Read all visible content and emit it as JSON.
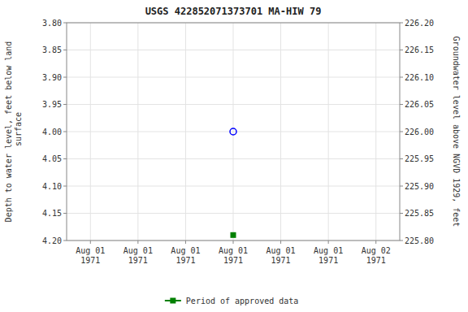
{
  "chart_data": {
    "type": "scatter",
    "title": "USGS 422852071373701 MA-HIW   79",
    "y_label": "Depth to water level, feet below land\n surface",
    "y2_label": "Groundwater level above NGVD 1929, feet",
    "categories": [
      "Aug 01\n1971",
      "Aug 01\n1971",
      "Aug 01\n1971",
      "Aug 01\n1971",
      "Aug 01\n1971",
      "Aug 01\n1971",
      "Aug 02\n1971"
    ],
    "series": [
      {
        "color": "blue",
        "marker": "circle",
        "values": [
          null,
          null,
          null,
          4.0,
          null,
          null,
          null
        ]
      },
      {
        "name": "Period of approved data",
        "color": "green",
        "marker": "square",
        "values": [
          null,
          null,
          null,
          4.19,
          null,
          null,
          null
        ]
      }
    ],
    "ylim": [
      4.2,
      3.8
    ],
    "yticks": [
      {
        "value": 3.8,
        "label": "3.80"
      },
      {
        "value": 3.85,
        "label": "3.85"
      },
      {
        "value": 3.9,
        "label": "3.90"
      },
      {
        "value": 3.95,
        "label": "3.95"
      },
      {
        "value": 4.0,
        "label": "4.00"
      },
      {
        "value": 4.05,
        "label": "4.05"
      },
      {
        "value": 4.1,
        "label": "4.10"
      },
      {
        "value": 4.15,
        "label": "4.15"
      },
      {
        "value": 4.2,
        "label": "4.20"
      }
    ],
    "y2lim": [
      225.8,
      226.2
    ],
    "y2ticks": [
      {
        "value": 226.2,
        "label": "226.20"
      },
      {
        "value": 226.15,
        "label": "226.15"
      },
      {
        "value": 226.1,
        "label": "226.10"
      },
      {
        "value": 226.05,
        "label": "226.05"
      },
      {
        "value": 226.0,
        "label": "226.00"
      },
      {
        "value": 225.95,
        "label": "225.95"
      },
      {
        "value": 225.9,
        "label": "225.90"
      },
      {
        "value": 225.85,
        "label": "225.85"
      },
      {
        "value": 225.8,
        "label": "225.80"
      }
    ],
    "grid": true,
    "legend": "bottom"
  }
}
